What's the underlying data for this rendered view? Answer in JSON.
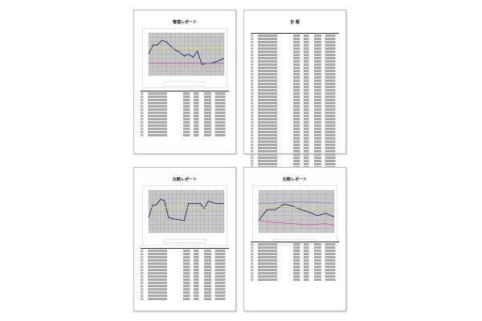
{
  "pages": [
    {
      "title": "管理レポート"
    },
    {
      "title": "日 報"
    },
    {
      "title": "比較レポート"
    },
    {
      "title": "比較レポート"
    }
  ],
  "chart_data": [
    {
      "type": "line",
      "grid": true,
      "legend": "bottom",
      "series": [
        {
          "color": "#1f2a6b",
          "values": [
            55,
            70,
            70,
            78,
            75,
            68,
            62,
            58,
            52,
            55,
            50,
            60,
            38,
            40,
            40,
            42,
            45,
            48
          ]
        },
        {
          "color": "#e6e04a",
          "values": [
            65,
            65,
            65,
            65,
            65,
            65,
            65,
            65,
            65,
            65,
            65,
            65,
            65,
            65,
            65,
            65,
            65,
            65
          ]
        },
        {
          "color": "#d040c0",
          "values": [
            40,
            40,
            40,
            40,
            40,
            40,
            40,
            40,
            40,
            40,
            40,
            40,
            40,
            40,
            40,
            40,
            40,
            40
          ]
        }
      ]
    },
    {
      "type": "line",
      "grid": true,
      "legend": "bottom",
      "series": [
        {
          "color": "#1f2a6b",
          "values": [
            45,
            65,
            66,
            75,
            73,
            45,
            43,
            42,
            41,
            40,
            68,
            68,
            68,
            68,
            60,
            72,
            70,
            68,
            68,
            68
          ]
        },
        {
          "color": "#e6e04a",
          "values": [
            62,
            62,
            62,
            62,
            62,
            62,
            62,
            62,
            62,
            62,
            62,
            62,
            62,
            62,
            62,
            62,
            62,
            62,
            62,
            62
          ]
        }
      ]
    },
    {
      "type": "line",
      "grid": true,
      "legend": "bottom",
      "series": [
        {
          "color": "#1f2a6b",
          "values": [
            40,
            58,
            58,
            67,
            64,
            58,
            54,
            48,
            52,
            46
          ]
        },
        {
          "color": "#8a7ad8",
          "values": [
            68,
            68,
            69,
            70,
            71,
            71,
            70,
            70,
            69,
            69
          ]
        },
        {
          "color": "#e6e04a",
          "values": [
            62,
            62,
            63,
            63,
            62,
            61,
            62,
            61,
            62,
            62
          ]
        },
        {
          "color": "#e040b0",
          "values": [
            40,
            38,
            37,
            36,
            35,
            34,
            33,
            34,
            35,
            32
          ]
        }
      ]
    }
  ]
}
